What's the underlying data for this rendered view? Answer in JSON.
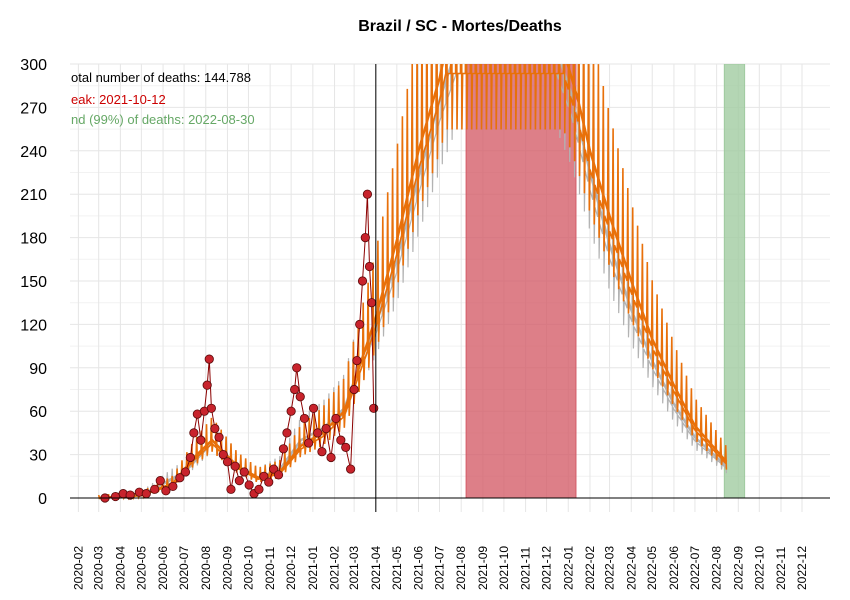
{
  "chart_data": {
    "type": "line",
    "title": "Brazil / SC - Mortes/Deaths",
    "xlabel": "",
    "ylabel": "",
    "ylim": [
      0,
      300
    ],
    "yticks": [
      0,
      30,
      60,
      90,
      120,
      150,
      180,
      210,
      240,
      270,
      300
    ],
    "x_range": [
      "2020-01-20",
      "2023-01-10"
    ],
    "x_ticks": [
      "2020-02",
      "2020-03",
      "2020-04",
      "2020-05",
      "2020-06",
      "2020-07",
      "2020-08",
      "2020-09",
      "2020-10",
      "2020-11",
      "2020-12",
      "2021-01",
      "2021-02",
      "2021-03",
      "2021-04",
      "2021-05",
      "2021-06",
      "2021-07",
      "2021-08",
      "2021-09",
      "2021-10",
      "2021-11",
      "2021-12",
      "2022-01",
      "2022-02",
      "2022-03",
      "2022-04",
      "2022-05",
      "2022-06",
      "2022-07",
      "2022-08",
      "2022-09",
      "2022-10",
      "2022-11",
      "2022-12"
    ],
    "grid": true,
    "vline_date": "2021-04-01",
    "annotations": [
      {
        "text": "otal number of deaths: 144.788",
        "color": "#000000"
      },
      {
        "text": "eak: 2021-10-12",
        "color": "#cc0000"
      },
      {
        "text": "nd (99%) of deaths: 2022-08-30",
        "color": "#66a866"
      }
    ],
    "peak_band": {
      "start": "2021-08-08",
      "end": "2022-01-12",
      "color": "#d45b67"
    },
    "end_band": {
      "start": "2022-08-12",
      "end": "2022-09-10",
      "color": "#9fca9f"
    },
    "observed": [
      {
        "x": "2020-03-10",
        "y": 0
      },
      {
        "x": "2020-03-25",
        "y": 1
      },
      {
        "x": "2020-04-05",
        "y": 3
      },
      {
        "x": "2020-04-15",
        "y": 2
      },
      {
        "x": "2020-04-28",
        "y": 4
      },
      {
        "x": "2020-05-08",
        "y": 3
      },
      {
        "x": "2020-05-20",
        "y": 6
      },
      {
        "x": "2020-05-28",
        "y": 12
      },
      {
        "x": "2020-06-05",
        "y": 5
      },
      {
        "x": "2020-06-15",
        "y": 8
      },
      {
        "x": "2020-06-25",
        "y": 14
      },
      {
        "x": "2020-07-03",
        "y": 18
      },
      {
        "x": "2020-07-10",
        "y": 28
      },
      {
        "x": "2020-07-15",
        "y": 45
      },
      {
        "x": "2020-07-20",
        "y": 58
      },
      {
        "x": "2020-07-25",
        "y": 40
      },
      {
        "x": "2020-07-30",
        "y": 60
      },
      {
        "x": "2020-08-03",
        "y": 78
      },
      {
        "x": "2020-08-06",
        "y": 96
      },
      {
        "x": "2020-08-09",
        "y": 62
      },
      {
        "x": "2020-08-14",
        "y": 48
      },
      {
        "x": "2020-08-20",
        "y": 42
      },
      {
        "x": "2020-08-26",
        "y": 30
      },
      {
        "x": "2020-09-01",
        "y": 25
      },
      {
        "x": "2020-09-06",
        "y": 6
      },
      {
        "x": "2020-09-12",
        "y": 22
      },
      {
        "x": "2020-09-18",
        "y": 12
      },
      {
        "x": "2020-09-25",
        "y": 18
      },
      {
        "x": "2020-10-02",
        "y": 9
      },
      {
        "x": "2020-10-09",
        "y": 3
      },
      {
        "x": "2020-10-16",
        "y": 6
      },
      {
        "x": "2020-10-23",
        "y": 15
      },
      {
        "x": "2020-10-30",
        "y": 11
      },
      {
        "x": "2020-11-06",
        "y": 20
      },
      {
        "x": "2020-11-13",
        "y": 16
      },
      {
        "x": "2020-11-20",
        "y": 34
      },
      {
        "x": "2020-11-25",
        "y": 45
      },
      {
        "x": "2020-12-01",
        "y": 60
      },
      {
        "x": "2020-12-06",
        "y": 75
      },
      {
        "x": "2020-12-09",
        "y": 90
      },
      {
        "x": "2020-12-14",
        "y": 70
      },
      {
        "x": "2020-12-20",
        "y": 55
      },
      {
        "x": "2020-12-26",
        "y": 38
      },
      {
        "x": "2021-01-02",
        "y": 62
      },
      {
        "x": "2021-01-08",
        "y": 45
      },
      {
        "x": "2021-01-14",
        "y": 32
      },
      {
        "x": "2021-01-20",
        "y": 48
      },
      {
        "x": "2021-01-27",
        "y": 28
      },
      {
        "x": "2021-02-03",
        "y": 55
      },
      {
        "x": "2021-02-10",
        "y": 40
      },
      {
        "x": "2021-02-17",
        "y": 35
      },
      {
        "x": "2021-02-24",
        "y": 20
      },
      {
        "x": "2021-03-01",
        "y": 75
      },
      {
        "x": "2021-03-05",
        "y": 95
      },
      {
        "x": "2021-03-09",
        "y": 120
      },
      {
        "x": "2021-03-13",
        "y": 150
      },
      {
        "x": "2021-03-17",
        "y": 180
      },
      {
        "x": "2021-03-20",
        "y": 210
      },
      {
        "x": "2021-03-23",
        "y": 160
      },
      {
        "x": "2021-03-26",
        "y": 135
      },
      {
        "x": "2021-03-29",
        "y": 62
      }
    ],
    "series": [
      {
        "color": "#b3b3b3",
        "values": [
          {
            "x": "2020-03-01",
            "y": 0
          },
          {
            "x": "2020-05-01",
            "y": 2
          },
          {
            "x": "2020-07-01",
            "y": 18
          },
          {
            "x": "2020-08-10",
            "y": 40
          },
          {
            "x": "2020-09-15",
            "y": 22
          },
          {
            "x": "2020-10-15",
            "y": 14
          },
          {
            "x": "2020-11-15",
            "y": 20
          },
          {
            "x": "2020-12-15",
            "y": 40
          },
          {
            "x": "2021-01-15",
            "y": 48
          },
          {
            "x": "2021-02-15",
            "y": 62
          },
          {
            "x": "2021-03-15",
            "y": 100
          },
          {
            "x": "2021-04-01",
            "y": 120
          },
          {
            "x": "2021-05-01",
            "y": 165
          },
          {
            "x": "2021-06-01",
            "y": 222
          },
          {
            "x": "2021-07-01",
            "y": 275
          },
          {
            "x": "2021-07-25",
            "y": 310
          },
          {
            "x": "2021-12-15",
            "y": 310
          },
          {
            "x": "2022-01-05",
            "y": 280
          },
          {
            "x": "2022-02-01",
            "y": 225
          },
          {
            "x": "2022-03-01",
            "y": 175
          },
          {
            "x": "2022-04-01",
            "y": 130
          },
          {
            "x": "2022-05-01",
            "y": 95
          },
          {
            "x": "2022-06-01",
            "y": 65
          },
          {
            "x": "2022-07-01",
            "y": 42
          },
          {
            "x": "2022-08-15",
            "y": 22
          }
        ]
      },
      {
        "color": "#e8700a",
        "values": [
          {
            "x": "2020-03-01",
            "y": 0
          },
          {
            "x": "2020-05-01",
            "y": 2
          },
          {
            "x": "2020-06-15",
            "y": 10
          },
          {
            "x": "2020-07-15",
            "y": 28
          },
          {
            "x": "2020-08-10",
            "y": 40
          },
          {
            "x": "2020-09-15",
            "y": 22
          },
          {
            "x": "2020-10-15",
            "y": 14
          },
          {
            "x": "2020-11-15",
            "y": 18
          },
          {
            "x": "2020-12-15",
            "y": 36
          },
          {
            "x": "2021-01-15",
            "y": 45
          },
          {
            "x": "2021-02-15",
            "y": 60
          },
          {
            "x": "2021-03-15",
            "y": 100
          },
          {
            "x": "2021-04-01",
            "y": 125
          },
          {
            "x": "2021-05-01",
            "y": 178
          },
          {
            "x": "2021-06-01",
            "y": 240
          },
          {
            "x": "2021-07-01",
            "y": 290
          },
          {
            "x": "2021-07-10",
            "y": 310
          },
          {
            "x": "2021-12-25",
            "y": 310
          },
          {
            "x": "2022-01-15",
            "y": 275
          },
          {
            "x": "2022-02-01",
            "y": 240
          },
          {
            "x": "2022-03-01",
            "y": 195
          },
          {
            "x": "2022-04-01",
            "y": 150
          },
          {
            "x": "2022-05-01",
            "y": 110
          },
          {
            "x": "2022-06-01",
            "y": 78
          },
          {
            "x": "2022-07-01",
            "y": 50
          },
          {
            "x": "2022-08-15",
            "y": 25
          }
        ]
      }
    ]
  }
}
